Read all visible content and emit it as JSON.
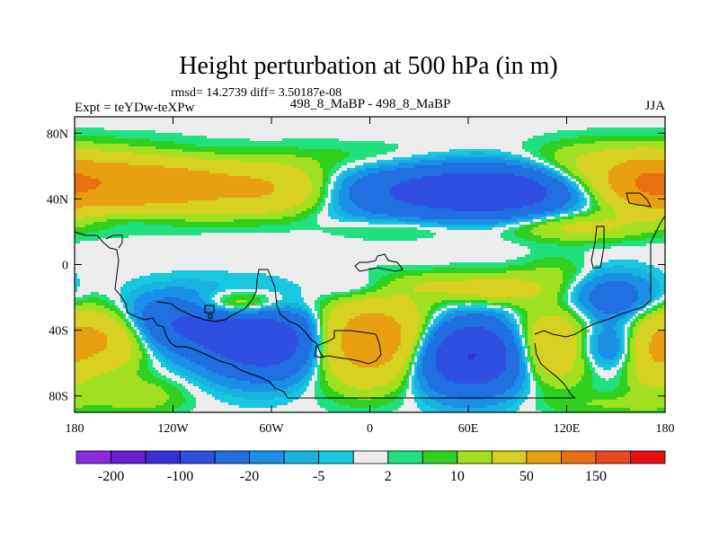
{
  "chart_data": {
    "type": "heatmap",
    "title": "Height perturbation at 500 hPa (in m)",
    "subtitle_stats": "rmsd= 14.2739 diff= 3.50187e-08",
    "subtitle_case": "498_8_MaBP - 498_8_MaBP",
    "experiment": "Expt = teYDw-teXPw",
    "season": "JJA",
    "x_ticks": [
      {
        "value": -180,
        "label": "180"
      },
      {
        "value": -120,
        "label": "120W"
      },
      {
        "value": -60,
        "label": "60W"
      },
      {
        "value": 0,
        "label": "0"
      },
      {
        "value": 60,
        "label": "60E"
      },
      {
        "value": 120,
        "label": "120E"
      },
      {
        "value": 180,
        "label": "180"
      }
    ],
    "y_ticks": [
      {
        "value": 80,
        "label": "80N"
      },
      {
        "value": 40,
        "label": "40N"
      },
      {
        "value": 0,
        "label": "0"
      },
      {
        "value": -40,
        "label": "40S"
      },
      {
        "value": -80,
        "label": "80S"
      }
    ],
    "xlim": [
      -180,
      180
    ],
    "ylim": [
      -90,
      90
    ],
    "legend": {
      "position": "bottom",
      "colors": [
        "#8a2be2",
        "#6a1fd0",
        "#3a2fd6",
        "#2f4fe0",
        "#1f6fe0",
        "#1a90e6",
        "#18b2e0",
        "#18c8e0",
        "#ececec",
        "#20e080",
        "#30d020",
        "#a0e020",
        "#d8d020",
        "#e8a010",
        "#e87010",
        "#e84820",
        "#e81010"
      ],
      "labels": [
        {
          "after_box": 1,
          "label": "-200"
        },
        {
          "after_box": 3,
          "label": "-100"
        },
        {
          "after_box": 5,
          "label": "-20"
        },
        {
          "after_box": 7,
          "label": "-5"
        },
        {
          "after_box": 9,
          "label": "2"
        },
        {
          "after_box": 11,
          "label": "10"
        },
        {
          "after_box": 13,
          "label": "50"
        },
        {
          "after_box": 15,
          "label": "150"
        }
      ]
    },
    "field_features": [
      {
        "lon": -165,
        "lat": 50,
        "amp": 70,
        "sx": 40,
        "sy": 12
      },
      {
        "lon": -110,
        "lat": 48,
        "amp": 45,
        "sx": 40,
        "sy": 11
      },
      {
        "lon": -55,
        "lat": 45,
        "amp": 35,
        "sx": 25,
        "sy": 10
      },
      {
        "lon": 10,
        "lat": 63,
        "amp": 12,
        "sx": 50,
        "sy": 8
      },
      {
        "lon": 40,
        "lat": 45,
        "amp": -60,
        "sx": 45,
        "sy": 12
      },
      {
        "lon": 85,
        "lat": 45,
        "amp": -55,
        "sx": 30,
        "sy": 10
      },
      {
        "lon": 135,
        "lat": 60,
        "amp": 20,
        "sx": 30,
        "sy": 10
      },
      {
        "lon": 170,
        "lat": 48,
        "amp": 50,
        "sx": 15,
        "sy": 10
      },
      {
        "lon": -130,
        "lat": 65,
        "amp": -8,
        "sx": 40,
        "sy": 6
      },
      {
        "lon": -145,
        "lat": 28,
        "amp": -8,
        "sx": 20,
        "sy": 4
      },
      {
        "lon": 20,
        "lat": 22,
        "amp": 12,
        "sx": 30,
        "sy": 5
      },
      {
        "lon": 125,
        "lat": 23,
        "amp": 25,
        "sx": 30,
        "sy": 6
      },
      {
        "lon": -10,
        "lat": -15,
        "amp": -12,
        "sx": 15,
        "sy": 6
      },
      {
        "lon": 35,
        "lat": -12,
        "amp": 10,
        "sx": 15,
        "sy": 5
      },
      {
        "lon": 75,
        "lat": -15,
        "amp": 30,
        "sx": 25,
        "sy": 7
      },
      {
        "lon": 115,
        "lat": -5,
        "amp": 10,
        "sx": 15,
        "sy": 8
      },
      {
        "lon": 148,
        "lat": -20,
        "amp": -35,
        "sx": 18,
        "sy": 10
      },
      {
        "lon": -165,
        "lat": -45,
        "amp": 60,
        "sx": 20,
        "sy": 13
      },
      {
        "lon": -115,
        "lat": -35,
        "amp": -50,
        "sx": 28,
        "sy": 12
      },
      {
        "lon": -80,
        "lat": -25,
        "amp": 45,
        "sx": 20,
        "sy": 6
      },
      {
        "lon": -60,
        "lat": -47,
        "amp": -90,
        "sx": 28,
        "sy": 15
      },
      {
        "lon": 0,
        "lat": -47,
        "amp": 95,
        "sx": 28,
        "sy": 17
      },
      {
        "lon": 60,
        "lat": -55,
        "amp": -110,
        "sx": 25,
        "sy": 15
      },
      {
        "lon": 110,
        "lat": -50,
        "amp": 60,
        "sx": 18,
        "sy": 15
      },
      {
        "lon": 145,
        "lat": -50,
        "amp": -30,
        "sx": 20,
        "sy": 10
      },
      {
        "lon": 172,
        "lat": -55,
        "amp": 40,
        "sx": 12,
        "sy": 15
      },
      {
        "lon": -140,
        "lat": -80,
        "amp": 15,
        "sx": 20,
        "sy": 8
      },
      {
        "lon": 150,
        "lat": -85,
        "amp": 10,
        "sx": 30,
        "sy": 5
      }
    ]
  }
}
